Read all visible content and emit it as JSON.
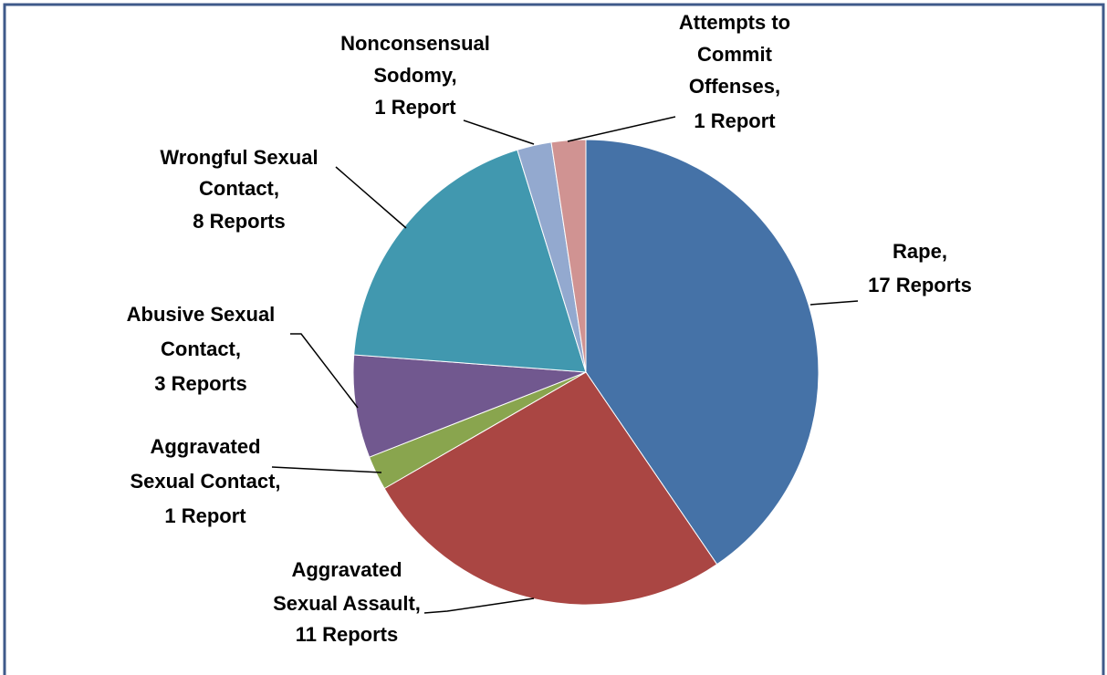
{
  "chart_data": {
    "type": "pie",
    "categories": [
      "Rape,",
      "Aggravated Sexual Assault,",
      "Aggravated Sexual Contact,",
      "Abusive Sexual Contact,",
      "Wrongful Sexual Contact,",
      "Nonconsensual Sodomy,",
      "Attempts to Commit Offenses,"
    ],
    "values": [
      17,
      11,
      1,
      3,
      8,
      1,
      1
    ],
    "value_labels": [
      "17 Reports",
      "11 Reports",
      "1 Report",
      "3 Reports",
      "8 Reports",
      "1 Report",
      "1 Report"
    ],
    "colors": [
      "#4572a7",
      "#aa4643",
      "#89a54e",
      "#71588f",
      "#4198af",
      "#93a9cf",
      "#d09392"
    ]
  }
}
